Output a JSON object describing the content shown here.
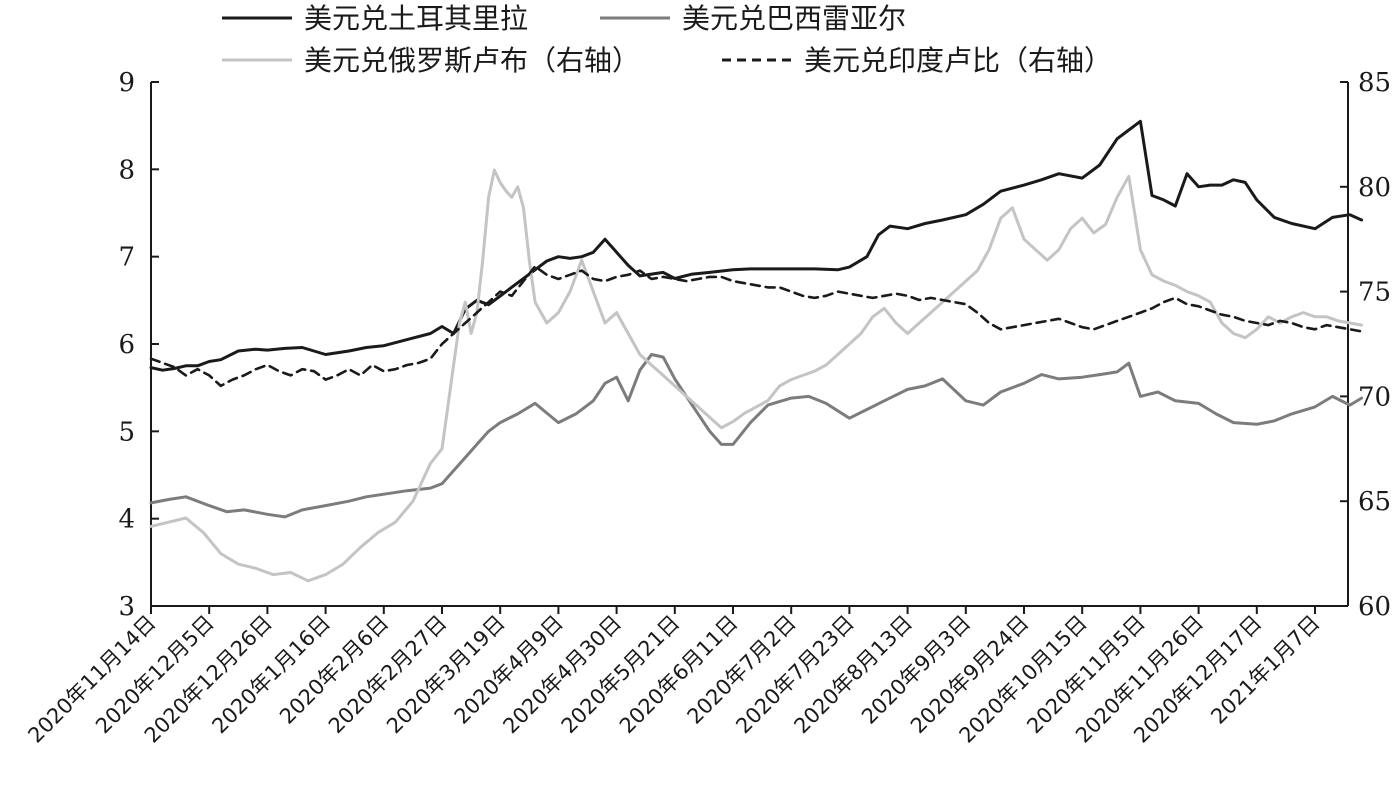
{
  "chart_data": {
    "type": "line",
    "title": "",
    "legend": {
      "placement": "top",
      "entries": [
        {
          "label": "美元兑土耳其里拉",
          "color": "#1a1a1a",
          "dash": "solid"
        },
        {
          "label": "美元兑巴西雷亚尔",
          "color": "#7c7c7c",
          "dash": "solid"
        },
        {
          "label": "美元兑俄罗斯卢布（右轴）",
          "color": "#c4c4c4",
          "dash": "solid"
        },
        {
          "label": "美元兑印度卢比（右轴）",
          "color": "#1a1a1a",
          "dash": "dashed"
        }
      ]
    },
    "x_categories": [
      "2020年11月14日",
      "2020年12月5日",
      "2020年12月26日",
      "2020年1月16日",
      "2020年2月6日",
      "2020年2月27日",
      "2020年3月19日",
      "2020年4月9日",
      "2020年4月30日",
      "2020年5月21日",
      "2020年6月11日",
      "2020年7月2日",
      "2020年7月23日",
      "2020年8月13日",
      "2020年9月3日",
      "2020年9月24日",
      "2020年10月15日",
      "2020年11月5日",
      "2020年11月26日",
      "2020年12月17日",
      "2021年1月7日"
    ],
    "y_left": {
      "min": 3,
      "max": 9,
      "ticks": [
        3,
        4,
        5,
        6,
        7,
        8,
        9
      ]
    },
    "y_right": {
      "min": 60,
      "max": 85,
      "ticks": [
        60,
        65,
        70,
        75,
        80,
        85
      ]
    },
    "series": [
      {
        "name": "美元兑土耳其里拉",
        "axis": "left",
        "color": "#1a1a1a",
        "dash": "solid",
        "x": [
          0,
          0.2,
          0.4,
          0.6,
          0.8,
          1,
          1.2,
          1.5,
          1.8,
          2,
          2.3,
          2.6,
          3,
          3.4,
          3.7,
          4,
          4.4,
          4.8,
          5,
          5.2,
          5.4,
          5.6,
          5.8,
          6,
          6.2,
          6.4,
          6.6,
          6.8,
          7,
          7.2,
          7.4,
          7.6,
          7.8,
          8,
          8.2,
          8.4,
          8.6,
          8.8,
          9,
          9.3,
          9.6,
          10,
          10.3,
          10.6,
          11,
          11.4,
          11.8,
          12,
          12.3,
          12.5,
          12.7,
          13,
          13.3,
          13.6,
          14,
          14.3,
          14.6,
          15,
          15.3,
          15.6,
          16,
          16.3,
          16.6,
          16.8,
          17,
          17.2,
          17.4,
          17.6,
          17.8,
          18,
          18.2,
          18.4,
          18.6,
          18.8,
          19,
          19.3,
          19.6,
          20,
          20.3,
          20.6,
          20.8
        ],
        "y": [
          5.73,
          5.7,
          5.72,
          5.75,
          5.75,
          5.8,
          5.82,
          5.92,
          5.94,
          5.93,
          5.95,
          5.96,
          5.88,
          5.92,
          5.96,
          5.98,
          6.05,
          6.12,
          6.2,
          6.12,
          6.4,
          6.5,
          6.45,
          6.55,
          6.65,
          6.75,
          6.85,
          6.95,
          7.0,
          6.98,
          7.0,
          7.05,
          7.2,
          7.05,
          6.9,
          6.78,
          6.8,
          6.82,
          6.75,
          6.8,
          6.82,
          6.85,
          6.86,
          6.86,
          6.86,
          6.86,
          6.85,
          6.88,
          7.0,
          7.25,
          7.35,
          7.32,
          7.38,
          7.42,
          7.48,
          7.6,
          7.75,
          7.82,
          7.88,
          7.95,
          7.9,
          8.05,
          8.35,
          8.45,
          8.55,
          7.7,
          7.65,
          7.58,
          7.95,
          7.8,
          7.82,
          7.82,
          7.88,
          7.85,
          7.65,
          7.45,
          7.38,
          7.32,
          7.45,
          7.48,
          7.42
        ]
      },
      {
        "name": "美元兑巴西雷亚尔",
        "axis": "left",
        "color": "#7c7c7c",
        "dash": "solid",
        "x": [
          0,
          0.3,
          0.6,
          1,
          1.3,
          1.6,
          2,
          2.3,
          2.6,
          3,
          3.4,
          3.7,
          4,
          4.4,
          4.8,
          5,
          5.2,
          5.4,
          5.6,
          5.8,
          6,
          6.3,
          6.6,
          7,
          7.3,
          7.6,
          7.8,
          8,
          8.2,
          8.4,
          8.6,
          8.8,
          9,
          9.2,
          9.4,
          9.6,
          9.8,
          10,
          10.3,
          10.6,
          11,
          11.3,
          11.6,
          12,
          12.3,
          12.6,
          13,
          13.3,
          13.6,
          14,
          14.3,
          14.6,
          15,
          15.3,
          15.6,
          16,
          16.3,
          16.6,
          16.8,
          17,
          17.3,
          17.6,
          18,
          18.3,
          18.6,
          19,
          19.3,
          19.6,
          20,
          20.3,
          20.6,
          20.8
        ],
        "y": [
          4.18,
          4.22,
          4.25,
          4.15,
          4.08,
          4.1,
          4.05,
          4.02,
          4.1,
          4.15,
          4.2,
          4.25,
          4.28,
          4.32,
          4.35,
          4.4,
          4.55,
          4.7,
          4.85,
          5.0,
          5.1,
          5.2,
          5.32,
          5.1,
          5.2,
          5.35,
          5.55,
          5.62,
          5.35,
          5.7,
          5.88,
          5.85,
          5.6,
          5.4,
          5.2,
          5.0,
          4.85,
          4.85,
          5.1,
          5.3,
          5.38,
          5.4,
          5.32,
          5.15,
          5.25,
          5.35,
          5.48,
          5.52,
          5.6,
          5.35,
          5.3,
          5.45,
          5.55,
          5.65,
          5.6,
          5.62,
          5.65,
          5.68,
          5.78,
          5.4,
          5.45,
          5.35,
          5.32,
          5.2,
          5.1,
          5.08,
          5.12,
          5.2,
          5.28,
          5.4,
          5.3,
          5.38
        ]
      },
      {
        "name": "美元兑俄罗斯卢布（右轴）",
        "axis": "right",
        "color": "#c4c4c4",
        "dash": "solid",
        "x": [
          0,
          0.3,
          0.6,
          0.9,
          1.2,
          1.5,
          1.8,
          2.1,
          2.4,
          2.7,
          3,
          3.3,
          3.6,
          3.9,
          4.2,
          4.5,
          4.8,
          5,
          5.2,
          5.3,
          5.4,
          5.5,
          5.6,
          5.7,
          5.8,
          5.9,
          6,
          6.1,
          6.2,
          6.3,
          6.4,
          6.5,
          6.6,
          6.8,
          7,
          7.2,
          7.4,
          7.6,
          7.8,
          8,
          8.2,
          8.4,
          8.6,
          8.8,
          9,
          9.2,
          9.4,
          9.6,
          9.8,
          10,
          10.2,
          10.4,
          10.6,
          10.8,
          11,
          11.2,
          11.4,
          11.6,
          11.8,
          12,
          12.2,
          12.4,
          12.6,
          12.8,
          13,
          13.2,
          13.4,
          13.6,
          13.8,
          14,
          14.2,
          14.4,
          14.6,
          14.8,
          15,
          15.2,
          15.4,
          15.6,
          15.8,
          16,
          16.2,
          16.4,
          16.6,
          16.8,
          17,
          17.2,
          17.4,
          17.6,
          17.8,
          18,
          18.2,
          18.4,
          18.6,
          18.8,
          19,
          19.2,
          19.4,
          19.6,
          19.8,
          20,
          20.2,
          20.4,
          20.6,
          20.8
        ],
        "y": [
          63.8,
          64.0,
          64.2,
          63.5,
          62.5,
          62.0,
          61.8,
          61.5,
          61.6,
          61.2,
          61.5,
          62.0,
          62.8,
          63.5,
          64.0,
          65.0,
          66.8,
          67.5,
          71.5,
          73.5,
          74.5,
          73.0,
          74.0,
          76.5,
          79.5,
          80.8,
          80.2,
          79.8,
          79.5,
          80.0,
          79.0,
          76.5,
          74.5,
          73.5,
          74.0,
          75.0,
          76.5,
          75.0,
          73.5,
          74.0,
          73.0,
          72.0,
          71.5,
          71.0,
          70.5,
          70.0,
          69.5,
          69.0,
          68.5,
          68.8,
          69.2,
          69.5,
          69.8,
          70.5,
          70.8,
          71.0,
          71.2,
          71.5,
          72.0,
          72.5,
          73.0,
          73.8,
          74.2,
          73.5,
          73.0,
          73.5,
          74.0,
          74.5,
          75.0,
          75.5,
          76.0,
          77.0,
          78.5,
          79.0,
          77.5,
          77.0,
          76.5,
          77.0,
          78.0,
          78.5,
          77.8,
          78.2,
          79.5,
          80.5,
          77.0,
          75.8,
          75.5,
          75.3,
          75.0,
          74.8,
          74.5,
          73.5,
          73.0,
          72.8,
          73.2,
          73.8,
          73.5,
          73.8,
          74.0,
          73.8,
          73.8,
          73.6,
          73.5,
          73.4
        ]
      },
      {
        "name": "美元兑印度卢比（右轴）",
        "axis": "right",
        "color": "#1a1a1a",
        "dash": "dashed",
        "x": [
          0,
          0.2,
          0.4,
          0.6,
          0.8,
          1,
          1.2,
          1.4,
          1.6,
          1.8,
          2,
          2.2,
          2.4,
          2.6,
          2.8,
          3,
          3.2,
          3.4,
          3.6,
          3.8,
          4,
          4.2,
          4.4,
          4.6,
          4.8,
          5,
          5.2,
          5.4,
          5.6,
          5.8,
          6,
          6.2,
          6.4,
          6.6,
          6.8,
          7,
          7.2,
          7.4,
          7.6,
          7.8,
          8,
          8.2,
          8.4,
          8.6,
          8.8,
          9,
          9.2,
          9.4,
          9.6,
          9.8,
          10,
          10.2,
          10.4,
          10.6,
          10.8,
          11,
          11.2,
          11.4,
          11.6,
          11.8,
          12,
          12.2,
          12.4,
          12.6,
          12.8,
          13,
          13.2,
          13.4,
          13.6,
          13.8,
          14,
          14.2,
          14.4,
          14.6,
          14.8,
          15,
          15.2,
          15.4,
          15.6,
          15.8,
          16,
          16.2,
          16.4,
          16.6,
          16.8,
          17,
          17.2,
          17.4,
          17.6,
          17.8,
          18,
          18.2,
          18.4,
          18.6,
          18.8,
          19,
          19.2,
          19.4,
          19.6,
          19.8,
          20,
          20.2,
          20.4,
          20.6,
          20.8
        ],
        "y": [
          71.8,
          71.6,
          71.4,
          71.0,
          71.3,
          71.0,
          70.5,
          70.8,
          71.0,
          71.3,
          71.5,
          71.2,
          71.0,
          71.3,
          71.2,
          70.8,
          71.0,
          71.3,
          71.0,
          71.5,
          71.2,
          71.3,
          71.5,
          71.6,
          71.8,
          72.5,
          73.0,
          73.5,
          74.0,
          74.5,
          75.0,
          74.8,
          75.5,
          76.2,
          75.8,
          75.6,
          75.8,
          76.0,
          75.6,
          75.5,
          75.7,
          75.8,
          76.0,
          75.6,
          75.7,
          75.6,
          75.5,
          75.6,
          75.7,
          75.7,
          75.5,
          75.4,
          75.3,
          75.2,
          75.2,
          75.0,
          74.8,
          74.7,
          74.8,
          75.0,
          74.9,
          74.8,
          74.7,
          74.8,
          74.9,
          74.8,
          74.6,
          74.7,
          74.6,
          74.5,
          74.4,
          74.0,
          73.5,
          73.2,
          73.3,
          73.4,
          73.5,
          73.6,
          73.7,
          73.5,
          73.3,
          73.2,
          73.4,
          73.6,
          73.8,
          74.0,
          74.2,
          74.5,
          74.7,
          74.4,
          74.3,
          74.1,
          73.9,
          73.8,
          73.6,
          73.5,
          73.4,
          73.6,
          73.5,
          73.3,
          73.2,
          73.4,
          73.3,
          73.2,
          73.1
        ]
      }
    ]
  }
}
